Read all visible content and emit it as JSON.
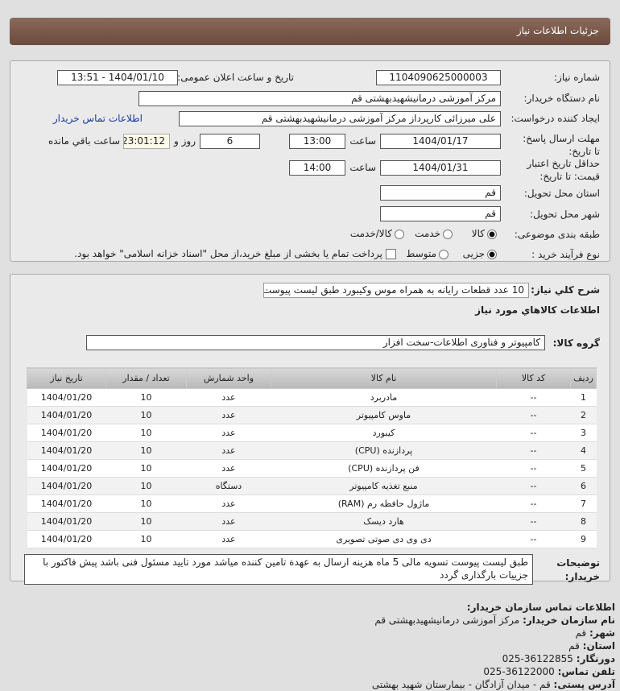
{
  "header": {
    "title": "جزئیات اطلاعات نیاز"
  },
  "form": {
    "need_number_label": "شماره نیاز:",
    "need_number": "1104090625000003",
    "announce_label": "تاریخ و ساعت اعلان عمومی:",
    "announce_value": "1404/01/10 - 13:51",
    "buyer_org_label": "نام دستگاه خریدار:",
    "buyer_org": "مرکز آموزشی درمانیشهیدبهشتی قم",
    "creator_label": "ایجاد کننده درخواست:",
    "creator": "علی میرزائی کارپرداز مرکز آموزشی درمانیشهیدبهشتی قم",
    "contact_link": "اطلاعات تماس خریدار",
    "deadline_label": "مهلت ارسال پاسخ: تا تاریخ:",
    "deadline_date": "1404/01/17",
    "time_label": "ساعت",
    "deadline_time": "13:00",
    "days": "6",
    "days_label": "روز و",
    "remaining": "23:01:12",
    "remaining_label": "ساعت باقي مانده",
    "validity_label": "حداقل تاریخ اعتبار قیمت: تا تاریخ:",
    "validity_date": "1404/01/31",
    "validity_time": "14:00",
    "province_label": "استان محل تحویل:",
    "province": "قم",
    "city_label": "شهر محل تحویل:",
    "city": "قم",
    "category_label": "طبقه بندی موضوعی:",
    "category_options": [
      "کالا",
      "خدمت",
      "کالا/خدمت"
    ],
    "process_label": "نوع فرآیند خرید :",
    "process_options": [
      "جزیی",
      "متوسط"
    ],
    "payment_note": "پرداخت تمام یا بخشی از مبلغ خرید،از محل \"اسناد خزانه اسلامی\" خواهد بود."
  },
  "details": {
    "summary_label": "شرح كلي نياز:",
    "summary": "10 عدد قطعات رایانه به همراه موس وکیبورد طبق لیست پیوست",
    "goods_title": "اطلاعات كالاهاي مورد نياز",
    "group_label": "گروه کالا:",
    "group": "کامپیوتر و فناوری اطلاعات-سخت افزار",
    "columns": [
      "ردیف",
      "کد کالا",
      "نام کالا",
      "واحد شمارش",
      "تعداد / مقدار",
      "تاریخ نیاز"
    ],
    "rows": [
      [
        "1",
        "--",
        "مادربرد",
        "عدد",
        "10",
        "1404/01/20"
      ],
      [
        "2",
        "--",
        "ماوس کامپیوتر",
        "عدد",
        "10",
        "1404/01/20"
      ],
      [
        "3",
        "--",
        "کیبورد",
        "عدد",
        "10",
        "1404/01/20"
      ],
      [
        "4",
        "--",
        "پردازنده (CPU)",
        "عدد",
        "10",
        "1404/01/20"
      ],
      [
        "5",
        "--",
        "فن پردازنده (CPU)",
        "عدد",
        "10",
        "1404/01/20"
      ],
      [
        "6",
        "--",
        "منبع تغذیه کامپیوتر",
        "دستگاه",
        "10",
        "1404/01/20"
      ],
      [
        "7",
        "--",
        "ماژول حافظه رم (RAM)",
        "عدد",
        "10",
        "1404/01/20"
      ],
      [
        "8",
        "--",
        "هارد دیسک",
        "عدد",
        "10",
        "1404/01/20"
      ],
      [
        "9",
        "--",
        "دی وی دی صوتی تصویری",
        "عدد",
        "10",
        "1404/01/20"
      ]
    ],
    "notes_label": "توضیحات خریدار:",
    "notes": "طبق لیست پیوست تسویه مالی 5 ماه هزینه ارسال به عهدة تامین کننده میاشد مورد تایید مسئول فنی باشد پیش فاکتور با جزییات بارگذاری گردد"
  },
  "contact": {
    "title": "اطلاعات تماس سازمان خریدار:",
    "org_label": "نام سازمان خریدار:",
    "org": "مرکز آموزشی درمانیشهیدبهشتی قم",
    "city_label": "شهر:",
    "city": "قم",
    "province_label": "استان:",
    "province": "قم",
    "fax_label": "دورنگار:",
    "fax": "36122855-025",
    "phone_label": "تلفن تماس:",
    "phone": "36122000-025",
    "address_label": "آدرس پستی:",
    "address": "قم - میدان آزادگان - بیمارستان شهید بهشتی"
  }
}
